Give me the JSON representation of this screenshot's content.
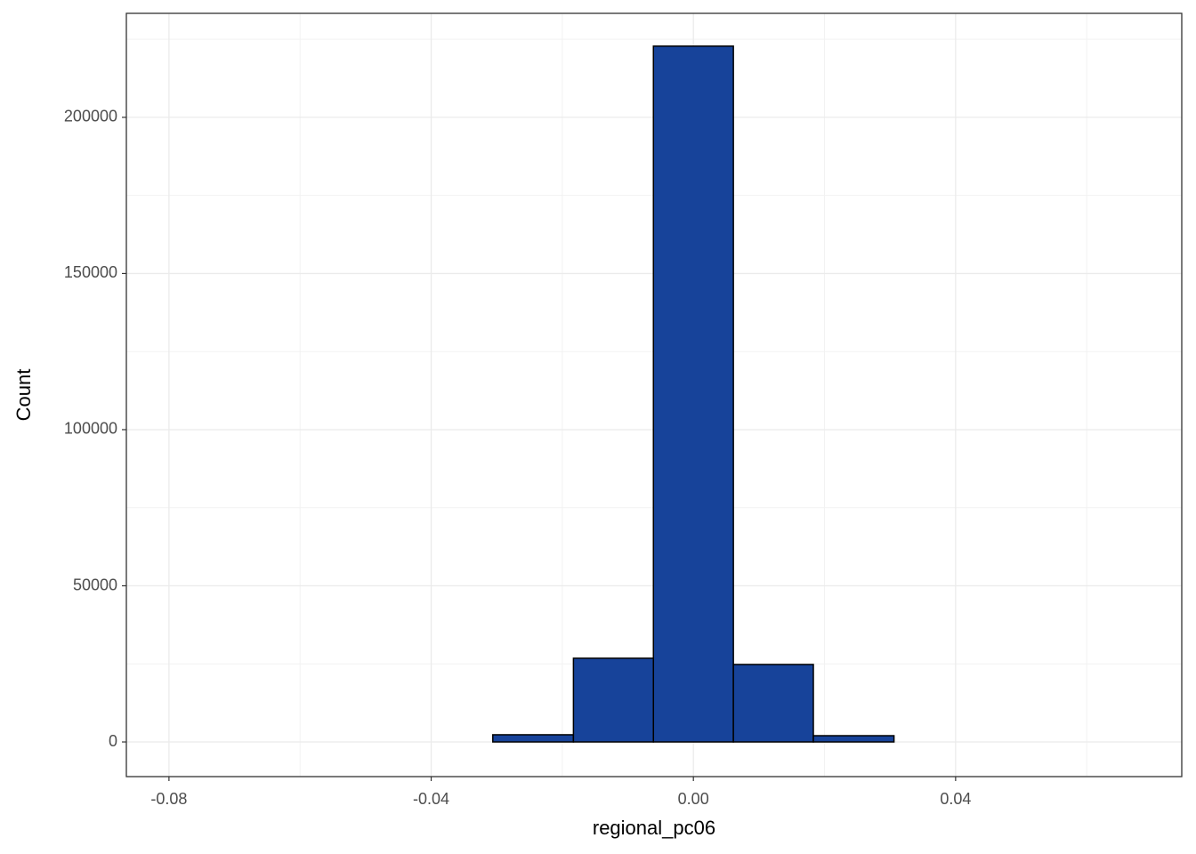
{
  "chart_data": {
    "type": "histogram",
    "x_label": "regional_pc06",
    "y_label": "Count",
    "bins": [
      -0.0794,
      -0.0672,
      -0.055,
      -0.0428,
      -0.0306,
      -0.0183,
      -0.0061,
      0.0061,
      0.0183,
      0.0306,
      0.0428,
      0.055,
      0.0672
    ],
    "values": [
      0,
      0,
      0,
      0,
      2300,
      26800,
      222800,
      24800,
      2000,
      0,
      0,
      0
    ],
    "color": "#17439a",
    "edge_color": "#000000",
    "xlim": [
      -0.0865,
      0.0745
    ],
    "xticks": [
      {
        "value": -0.08,
        "label": "-0.08"
      },
      {
        "value": -0.04,
        "label": "-0.04"
      },
      {
        "value": 0,
        "label": "0.00"
      },
      {
        "value": 0.04,
        "label": "0.04"
      }
    ],
    "ylim": [
      -11100,
      233300
    ],
    "yticks": [
      0,
      50000,
      100000,
      150000,
      200000
    ],
    "grid": true
  }
}
